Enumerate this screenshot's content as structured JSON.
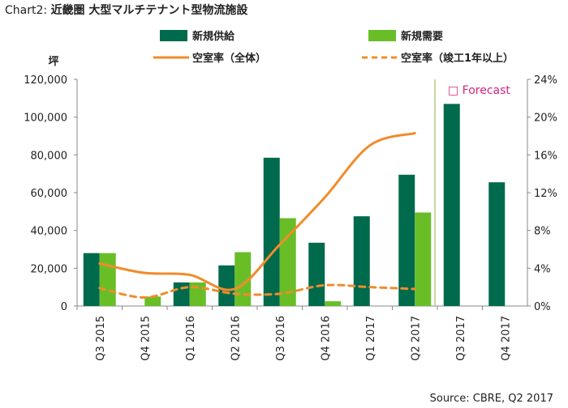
{
  "title": {
    "prefix": "Chart2:",
    "main": "近畿圏  大型マルチテナント型物流施設"
  },
  "source": "Source:  CBRE,  Q2  2017",
  "chart_data": {
    "type": "bar",
    "categories": [
      "Q3 2015",
      "Q4 2015",
      "Q1 2016",
      "Q2 2016",
      "Q3 2016",
      "Q4 2016",
      "Q1 2017",
      "Q2 2017",
      "Q3 2017",
      "Q4 2017"
    ],
    "series": [
      {
        "name": "新規供給",
        "type": "bar",
        "axis": "left",
        "color": "#006a4d",
        "values": [
          28000,
          null,
          12500,
          21500,
          78500,
          33500,
          47500,
          69500,
          107000,
          65500
        ]
      },
      {
        "name": "新規需要",
        "type": "bar",
        "axis": "left",
        "color": "#69be28",
        "values": [
          28000,
          5000,
          12500,
          28500,
          46500,
          2500,
          null,
          49500,
          null,
          null
        ]
      },
      {
        "name": "空室率（全体）",
        "type": "line",
        "axis": "right",
        "color": "#f08c2b",
        "style": "solid",
        "values": [
          4.5,
          3.5,
          3.3,
          1.8,
          6.5,
          11.5,
          17.0,
          18.3,
          null,
          null
        ]
      },
      {
        "name": "空室率（竣工1年以上）",
        "type": "line",
        "axis": "right",
        "color": "#f08c2b",
        "style": "dashed",
        "values": [
          1.9,
          0.9,
          2.0,
          1.3,
          1.3,
          2.2,
          2.0,
          1.8,
          null,
          null
        ]
      }
    ],
    "y_left": {
      "unit": "坪",
      "ticks": [
        "0",
        "20,000",
        "40,000",
        "60,000",
        "80,000",
        "100,000",
        "120,000"
      ],
      "range": [
        0,
        120000
      ]
    },
    "y_right": {
      "ticks": [
        "0%",
        "4%",
        "8%",
        "12%",
        "16%",
        "20%",
        "24%"
      ],
      "range": [
        0,
        24
      ]
    },
    "forecast_label": "□ Forecast",
    "forecast_from": "Q3 2017",
    "legend_position": "top",
    "grid": false
  }
}
